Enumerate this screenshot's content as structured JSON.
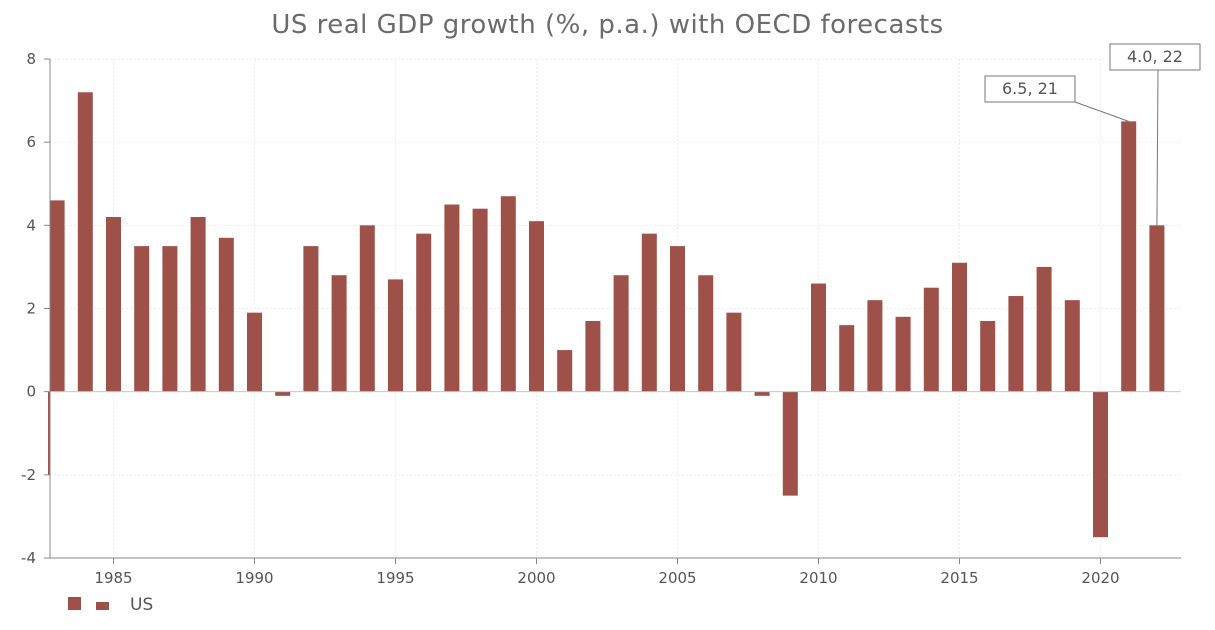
{
  "chart_data": {
    "type": "bar",
    "title": "US real GDP growth (%, p.a.) with OECD forecasts",
    "xlabel": "",
    "ylabel": "",
    "ylim": [
      -4,
      8
    ],
    "yticks": [
      "8",
      "6",
      "4",
      "2",
      "0",
      "-2",
      "-4"
    ],
    "xticks": [
      "1985",
      "1990",
      "1995",
      "2000",
      "2005",
      "2010",
      "2015",
      "2020"
    ],
    "grid": true,
    "legend_position": "bottom-left",
    "color": "#9e5148",
    "series": [
      {
        "name": "US",
        "x": [
          1983,
          1984,
          1985,
          1986,
          1987,
          1988,
          1989,
          1990,
          1991,
          1992,
          1993,
          1994,
          1995,
          1996,
          1997,
          1998,
          1999,
          2000,
          2001,
          2002,
          2003,
          2004,
          2005,
          2006,
          2007,
          2008,
          2009,
          2010,
          2011,
          2012,
          2013,
          2014,
          2015,
          2016,
          2017,
          2018,
          2019,
          2020,
          2021,
          2022
        ],
        "values": [
          4.6,
          7.2,
          4.2,
          3.5,
          3.5,
          4.2,
          3.7,
          1.9,
          -0.1,
          3.5,
          2.8,
          4.0,
          2.7,
          3.8,
          4.5,
          4.4,
          4.7,
          4.1,
          1.0,
          1.7,
          2.8,
          3.8,
          3.5,
          2.8,
          1.9,
          -0.1,
          -2.5,
          2.6,
          1.6,
          2.2,
          1.8,
          2.5,
          3.1,
          1.7,
          2.3,
          3.0,
          2.2,
          -3.5,
          6.5,
          4.0
        ]
      }
    ],
    "annotations": [
      {
        "text": "6.5, 21",
        "x": 2021,
        "y": 6.5
      },
      {
        "text": "4.0, 22",
        "x": 2022,
        "y": 4.0
      }
    ]
  }
}
